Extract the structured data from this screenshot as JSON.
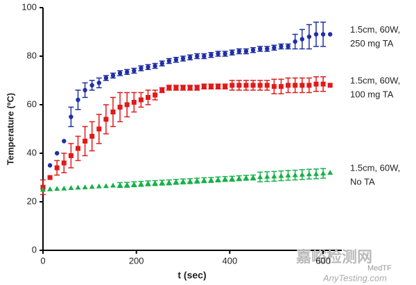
{
  "chart_data": {
    "type": "scatter",
    "x_label": "t (sec)",
    "y_label": "Temperature (ºC)",
    "xlim": [
      0,
      640
    ],
    "ylim": [
      0,
      100
    ],
    "xticks": [
      0,
      200,
      400,
      600
    ],
    "yticks": [
      0,
      20,
      40,
      60,
      80,
      100
    ],
    "grid": false,
    "x": [
      0,
      15,
      30,
      45,
      60,
      75,
      90,
      105,
      120,
      135,
      150,
      165,
      180,
      195,
      210,
      225,
      240,
      255,
      270,
      285,
      300,
      315,
      330,
      345,
      360,
      375,
      390,
      405,
      420,
      435,
      450,
      465,
      480,
      495,
      510,
      525,
      540,
      555,
      570,
      585,
      600,
      615
    ],
    "series": [
      {
        "name": [
          "1.5cm, 60W,",
          "250 mg TA"
        ],
        "color": "#1f2fa8",
        "marker": "circle",
        "values": [
          25,
          35,
          40,
          45,
          55,
          62,
          66,
          68,
          69,
          71,
          72,
          73,
          73.5,
          74,
          75,
          75.5,
          76,
          77,
          78,
          78.5,
          79,
          79.5,
          80,
          80,
          80.5,
          81,
          81,
          81.5,
          82,
          82,
          82.5,
          83,
          83,
          83.5,
          84,
          84,
          86,
          87,
          88,
          89,
          89,
          89
        ],
        "errors": [
          null,
          null,
          null,
          null,
          4,
          4,
          3,
          2,
          2,
          1,
          1,
          1,
          1,
          1,
          1,
          1,
          1,
          1,
          1,
          1,
          1,
          1,
          1,
          1,
          1,
          1,
          1,
          1,
          1,
          1,
          1,
          1,
          1,
          1,
          1,
          1,
          3,
          4,
          5,
          5,
          5,
          null
        ]
      },
      {
        "name": [
          "1.5cm, 60W,",
          "100 mg TA"
        ],
        "color": "#e01a1a",
        "marker": "square",
        "values": [
          26,
          30,
          34,
          36,
          39,
          42,
          45,
          47,
          50,
          54,
          57,
          59,
          60,
          61,
          62,
          63,
          64,
          66,
          67,
          67,
          67,
          67,
          67,
          67.5,
          67.5,
          67.5,
          67.5,
          68,
          68,
          68,
          68,
          68,
          68,
          67.5,
          67.5,
          68,
          68,
          68,
          68,
          68.5,
          68.5,
          68
        ],
        "errors": [
          3,
          null,
          3,
          4,
          5,
          5,
          6,
          6,
          6,
          6,
          6,
          6,
          5,
          4,
          3,
          3,
          2,
          1,
          1,
          1,
          1,
          1,
          1,
          1,
          1,
          1,
          1,
          2,
          2,
          2,
          2,
          2,
          2,
          3,
          3,
          3,
          3,
          3,
          3,
          3,
          3,
          null
        ]
      },
      {
        "name": [
          "1.5cm, 60W,",
          "No TA"
        ],
        "color": "#19b04a",
        "marker": "triangle",
        "values": [
          25,
          25.2,
          25.4,
          25.5,
          25.7,
          25.9,
          26,
          26.2,
          26.4,
          26.5,
          26.7,
          26.9,
          27,
          27.2,
          27.4,
          27.6,
          27.7,
          27.9,
          28,
          28.2,
          28.4,
          28.5,
          28.7,
          28.9,
          29,
          29.2,
          29.4,
          29.5,
          29.7,
          29.9,
          30,
          30.2,
          30.4,
          30.5,
          30.7,
          30.9,
          31,
          31.2,
          31.4,
          31.5,
          31.7,
          32
        ],
        "errors": [
          null,
          null,
          null,
          null,
          null,
          null,
          null,
          null,
          null,
          null,
          null,
          1,
          1,
          1,
          1,
          1,
          1,
          1,
          1,
          1,
          1,
          1,
          1,
          1,
          1,
          1,
          1,
          1,
          1,
          1,
          1,
          2,
          2,
          2,
          2,
          2,
          2,
          2,
          2,
          2,
          2,
          null
        ]
      }
    ]
  },
  "watermark": {
    "site_cn": "嘉峪检测网",
    "site": "AnyTesting.com",
    "source": "MedTF"
  }
}
